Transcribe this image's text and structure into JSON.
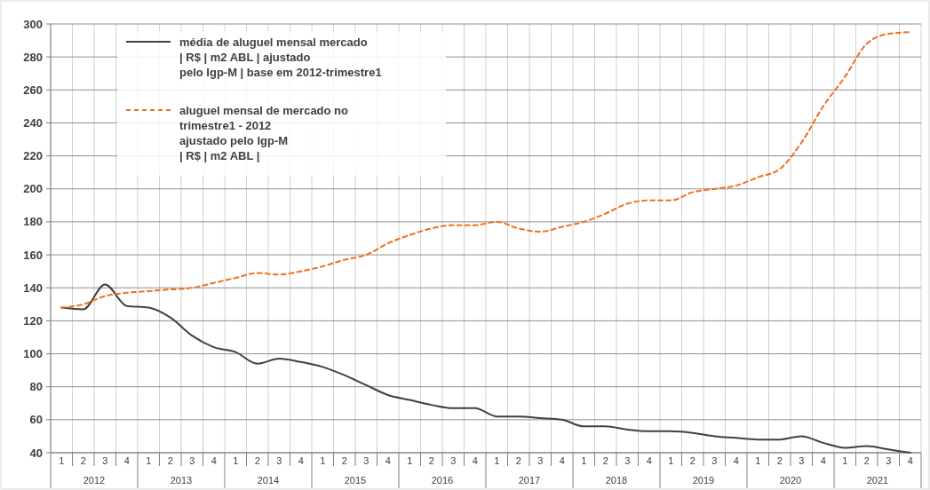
{
  "chart_data": {
    "type": "line",
    "categories": [
      "1",
      "2",
      "3",
      "4",
      "1",
      "2",
      "3",
      "4",
      "1",
      "2",
      "3",
      "4",
      "1",
      "2",
      "3",
      "4",
      "1",
      "2",
      "3",
      "4",
      "1",
      "2",
      "3",
      "4",
      "1",
      "2",
      "3",
      "4",
      "1",
      "2",
      "3",
      "4",
      "1",
      "2",
      "3",
      "4",
      "1",
      "2",
      "3",
      "4"
    ],
    "annotations": [
      "2012",
      "2013",
      "2014",
      "2015",
      "2016",
      "2017",
      "2018",
      "2019",
      "2020",
      "2021"
    ],
    "series": [
      {
        "name": "média de aluguel mensal mercado\n| R$ | m2 ABL | ajustado\npelo Igp-M | base em 2012-trimestre1",
        "color": "#404040",
        "line_style": "solid",
        "values": [
          128,
          127,
          142,
          129,
          128,
          122,
          111,
          104,
          101,
          94,
          97,
          95,
          92,
          87,
          81,
          75,
          72,
          69,
          67,
          67,
          62,
          62,
          61,
          60,
          56,
          56,
          54,
          53,
          53,
          52,
          50,
          49,
          48,
          48,
          50,
          46,
          43,
          44,
          42,
          40
        ]
      },
      {
        "name": "aluguel mensal de mercado no\ntrimestre1 - 2012\najustado pelo Igp-M\n| R$ | m2 ABL |",
        "color": "#f07020",
        "line_style": "dashed",
        "values": [
          128,
          130,
          135,
          137,
          138,
          139,
          140,
          143,
          146,
          149,
          148,
          150,
          153,
          157,
          160,
          167,
          172,
          176,
          178,
          178,
          180,
          176,
          174,
          177,
          180,
          185,
          191,
          193,
          193,
          198,
          200,
          202,
          207,
          212,
          228,
          250,
          268,
          288,
          294,
          295
        ]
      }
    ],
    "ylim": [
      40,
      300
    ],
    "yticks": [
      40,
      60,
      80,
      100,
      120,
      140,
      160,
      180,
      200,
      220,
      240,
      260,
      280,
      300
    ],
    "grid": true,
    "legend": "top left",
    "marker": "none"
  }
}
